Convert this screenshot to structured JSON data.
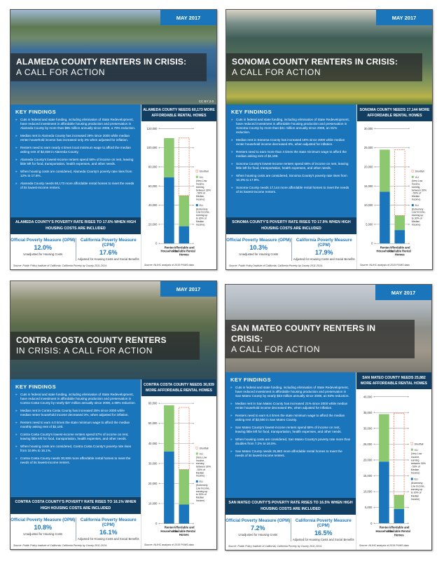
{
  "colors": {
    "blue": "#1a75bb",
    "navy": "#123e62",
    "vli": "#8cc870",
    "shortfall": "#f06a4a"
  },
  "legend": {
    "shortfall": "Shortfall",
    "vli": "VLI",
    "vli_desc": "(Very Low Income, earning between 30% - 50% of Median Income)",
    "eli": "ELI",
    "eli_desc": "(Extremely Low Income, earning up to 30% of Median Income)"
  },
  "categories": [
    "Renter Households",
    "Affordable and Available Rental Homes"
  ],
  "panels": [
    {
      "date": "MAY 2017",
      "title_line1": "ALAMEDA COUNTY RENTERS IN CRISIS:",
      "title_line2": "A CALL FOR ACTION",
      "photo_credit": "CC BY 2.0",
      "key_findings_heading": "KEY FINDINGS",
      "findings": [
        "Cuts in federal and state funding, including elimination of State Redevelopment, have reduced investment in affordable housing production and preservation in Alameda County by more than $85 million annually since 2008, a 78% reduction.",
        "Median rent in Alameda County has increased 29% since 2000 while median renter household income has increased only 3% when adjusted for inflation.",
        "Renters need to earn nearly 4 times local minimum wage to afford the median asking rent of $2,838 in Alameda County.",
        "Alameda County's lowest-income renters spend 56% of income on rent, leaving little left for food, transportation, health expenses, and other needs.",
        "When housing costs are considered, Alameda County's poverty rate rises from 12% to 17.6%.",
        "Alameda County needs 60,173 more affordable rental homes to meet the needs of its lowest-income renters."
      ],
      "banner": "ALAMEDA COUNTY'S POVERTY RATE RISES TO 17.6% WHEN HIGH HOUSING COSTS ARE INCLUDED",
      "opm": {
        "label": "Official Poverty Measure (OPM)",
        "value": "12.0%",
        "note": "Unadjusted for Housing Costs"
      },
      "cpm": {
        "label": "California Poverty Measure (CPM)",
        "value": "17.6%",
        "note": "Adjusted for Housing Costs and Social Benefits"
      },
      "source": "Source: Public Policy Institute of California, California Poverty by County 2011-2014.",
      "chart_heading": "ALAMEDA COUNTY NEEDS 60,173 MORE AFFORDABLE RENTAL HOMES",
      "chart_source": "Source: NLIHC analysis of 2015 PUMS data.",
      "chart_data": {
        "type": "bar",
        "stacked": true,
        "ylim": [
          0,
          120000
        ],
        "yticks": [
          "0",
          "20,000",
          "40,000",
          "60,000",
          "80,000",
          "100,000",
          "120,000"
        ],
        "ytick_values": [
          0,
          20000,
          40000,
          60000,
          80000,
          100000,
          120000
        ],
        "series": [
          {
            "name": "ELI",
            "values": [
              69000,
              18000
            ]
          },
          {
            "name": "VLI",
            "values": [
              41000,
              32000
            ]
          },
          {
            "name": "Shortfall",
            "values": [
              0,
              60173
            ]
          }
        ],
        "legend": "right",
        "grid": true
      }
    },
    {
      "date": "MAY 2017",
      "title_line1": "SONOMA COUNTY RENTERS IN CRISIS:",
      "title_line2": "A CALL FOR ACTION",
      "photo_credit": "",
      "key_findings_heading": "KEY FINDINGS",
      "findings": [
        "Cuts in federal and state funding, including elimination of State Redevelopment, have reduced investment in affordable housing production and preservation in Sonoma County by more than $41 million annually since 2008, an 81% reduction.",
        "Median rent in Sonoma County has increased 18% since 2000 while median renter household income decreased 6%, when adjusted for inflation.",
        "Renters need to earn more than 4 times the state minimum wage to afford the median asking rent of $2,199.",
        "Sonoma County's lowest-income renters spend 68% of income on rent, leaving little left for food, transportation, health expenses, and other needs.",
        "When housing costs are considered, Sonoma County's poverty rate rises from 10.3% to 17.9%.",
        "Sonoma County needs 17,144 more affordable rental homes to meet the needs of its lowest-income renters."
      ],
      "banner": "SONOMA COUNTY'S POVERTY RATE RISES TO 17.9% WHEN HIGH HOUSING COSTS ARE INCLUDED",
      "opm": {
        "label": "Official Poverty Measure (OPM)",
        "value": "10.3%",
        "note": "Unadjusted for Housing Costs"
      },
      "cpm": {
        "label": "California Poverty Measure (CPM)",
        "value": "17.9%",
        "note": "Adjusted for Housing Costs and Social Benefits"
      },
      "source": "Source: Public Policy Institute of California, California Poverty by County 2011-2014.",
      "chart_heading": "SONOMA COUNTY NEEDS 17,144 MORE AFFORDABLE RENTAL HOMES",
      "chart_source": "Source: NLIHC analysis of 2015 PUMS data.",
      "chart_data": {
        "type": "bar",
        "stacked": true,
        "ylim": [
          0,
          30000
        ],
        "yticks": [
          "0",
          "5,000",
          "10,000",
          "15,000",
          "20,000",
          "25,000",
          "30,000"
        ],
        "ytick_values": [
          0,
          5000,
          10000,
          15000,
          20000,
          25000,
          30000
        ],
        "series": [
          {
            "name": "ELI",
            "values": [
              13500,
              3500
            ]
          },
          {
            "name": "VLI",
            "values": [
              11000,
              3800
            ]
          },
          {
            "name": "Shortfall",
            "values": [
              0,
              17144
            ]
          }
        ],
        "legend": "right",
        "grid": true
      }
    },
    {
      "date": "MAY 2017",
      "title_line1": "CONTRA COSTA COUNTY RENTERS",
      "title_line2": "IN CRISIS: A CALL FOR ACTION",
      "photo_credit": "",
      "key_findings_heading": "KEY FINDINGS",
      "findings": [
        "Cuts in federal and state funding, including elimination of State Redevelopment, have reduced investment in affordable housing production and preservation in Contra Costa County by nearly $37 million annually since 2008, a 68% reduction.",
        "Median rent in Contra Costa County has increased 25% since 2000 while median renter household income decreased 3%, when adjusted for inflation.",
        "Renters need to earn 4.0 times the state minimum wage to afford the median monthly asking rent of $2,100.",
        "Contra Costa County's lowest-income renters spend 57% of income on rent, leaving little left for food, transportation, health expenses, and other needs.",
        "When housing costs are considered, Contra Costa County's poverty rate rises from 10.8% to 16.1%.",
        "Contra Costa County needs 30,939 more affordable rental homes to meet the needs of its lowest-income renters."
      ],
      "banner": "CONTRA COSTA COUNTY'S POVERTY RATE RISES TO 16.1% WHEN HIGH HOUSING COSTS ARE INCLUDED",
      "opm": {
        "label": "Official Poverty Measure (OPM)",
        "value": "10.8%",
        "note": "Unadjusted for Housing Costs"
      },
      "cpm": {
        "label": "California Poverty Measure (CPM)",
        "value": "16.1%",
        "note": "Adjusted for Housing Costs and Social Benefits"
      },
      "source": "Source: Public Policy Institute of California, California Poverty by County 2011-2014.",
      "chart_heading": "CONTRA COSTA COUNTY NEEDS 30,939 MORE AFFORDABLE RENTAL HOMES",
      "chart_source": "Source: NLIHC analysis of 2015 PUMS data.",
      "chart_data": {
        "type": "bar",
        "stacked": true,
        "ylim": [
          0,
          60000
        ],
        "yticks": [
          "0",
          "10,000",
          "20,000",
          "30,000",
          "40,000",
          "50,000",
          "60,000"
        ],
        "ytick_values": [
          0,
          10000,
          20000,
          30000,
          40000,
          50000,
          60000
        ],
        "series": [
          {
            "name": "ELI",
            "values": [
              36000,
              9500
            ]
          },
          {
            "name": "VLI",
            "values": [
              23000,
              17500
            ]
          },
          {
            "name": "Shortfall",
            "values": [
              0,
              30939
            ]
          }
        ],
        "legend": "right",
        "grid": true
      }
    },
    {
      "date": "MAY 2017",
      "title_line1": "SAN MATEO COUNTY RENTERS IN CRISIS:",
      "title_line2": "A CALL FOR ACTION",
      "photo_credit": "",
      "key_findings_heading": "KEY FINDINGS",
      "findings": [
        "Cuts in federal and state funding, including elimination of State Redevelopment, have reduced investment in affordable housing production and preservation in San Mateo County by nearly $33 million annually since 2008, an 83% reduction.",
        "Median rent in San Mateo County has increased 21% since 2000 while median renter household income decreased 8%, when adjusted for inflation.",
        "Renters need to earn 6.4 times the state minimum wage to afford the median asking rent of $3,500 in San Mateo County.",
        "San Mateo County's lowest-income renters spend 68% of income on rent, leaving little left for food, transportation, health expenses, and other needs.",
        "When housing costs are considered, San Mateo County's poverty rate more than doubles from 7.2% to 16.5%.",
        "San Mateo County needs 25,882 more affordable rental homes to meet the needs of its lowest-income renters."
      ],
      "banner": "SAN MATEO COUNTY'S POVERTY RATE RISES TO 16.5% WHEN HIGH HOUSING COSTS ARE INCLUDED",
      "opm": {
        "label": "Official Poverty Measure (OPM)",
        "value": "7.2%",
        "note": "Unadjusted for Housing Costs"
      },
      "cpm": {
        "label": "California Poverty Measure (CPM)",
        "value": "16.5%",
        "note": "Adjusted for Housing Costs and Social Benefits"
      },
      "source": "Source: Public Policy Institute of California, California Poverty by County 2011-2014.",
      "chart_heading": "SAN MATEO COUNTY NEEDS 25,882 MORE AFFORDABLE RENTAL HOMES",
      "chart_source": "Source: NLIHC analysis of 2015 PUMS data.",
      "chart_data": {
        "type": "bar",
        "stacked": true,
        "ylim": [
          0,
          40000
        ],
        "yticks": [
          "0",
          "5,000",
          "10,000",
          "15,000",
          "20,000",
          "25,000",
          "30,000",
          "35,000",
          "40,000"
        ],
        "ytick_values": [
          0,
          5000,
          10000,
          15000,
          20000,
          25000,
          30000,
          35000,
          40000
        ],
        "series": [
          {
            "name": "ELI",
            "values": [
              19500,
              4500
            ]
          },
          {
            "name": "VLI",
            "values": [
              15000,
              4400
            ]
          },
          {
            "name": "Shortfall",
            "values": [
              0,
              25882
            ]
          }
        ],
        "legend": "right",
        "grid": true
      }
    }
  ]
}
